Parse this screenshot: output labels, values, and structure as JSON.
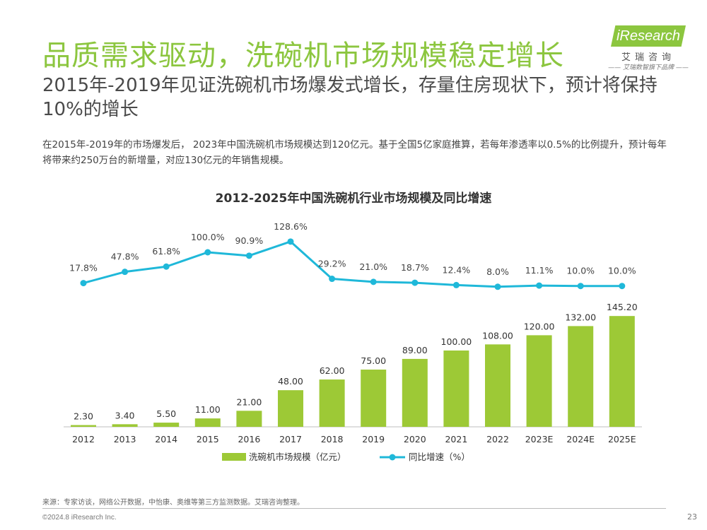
{
  "header": {
    "title": "品质需求驱动，洗碗机市场规模稳定增长",
    "subtitle": "2015年-2019年见证洗碗机市场爆发式增长，存量住房现状下，预计将保持10%的增长",
    "description": "在2015年-2019年的市场爆发后， 2023年中国洗碗机市场规模达到120亿元。基于全国5亿家庭推算，若每年渗透率以0.5%的比例提升，预计每年将带来约250万台的新增量，对应130亿元的年销售规模。"
  },
  "logo": {
    "brand": "iResearch",
    "cn": "艾瑞咨询",
    "tagline": "—— 艾瑞数智旗下品牌 ——"
  },
  "chart_data": {
    "type": "bar",
    "title": "2012-2025年中国洗碗机行业市场规模及同比增速",
    "categories": [
      "2012",
      "2013",
      "2014",
      "2015",
      "2016",
      "2017",
      "2018",
      "2019",
      "2020",
      "2021",
      "2022",
      "2023E",
      "2024E",
      "2025E"
    ],
    "series": [
      {
        "name": "洗碗机市场规模（亿元）",
        "type": "bar",
        "color": "#9dc936",
        "values": [
          2.3,
          3.4,
          5.5,
          11.0,
          21.0,
          48.0,
          62.0,
          75.0,
          89.0,
          100.0,
          108.0,
          120.0,
          132.0,
          145.2
        ],
        "labels": [
          "2.30",
          "3.40",
          "5.50",
          "11.00",
          "21.00",
          "48.00",
          "62.00",
          "75.00",
          "89.00",
          "100.00",
          "108.00",
          "120.00",
          "132.00",
          "145.20"
        ]
      },
      {
        "name": "同比增速（%）",
        "type": "line",
        "color": "#1fb8d9",
        "values": [
          17.8,
          47.8,
          61.8,
          100.0,
          90.9,
          128.6,
          29.2,
          21.0,
          18.7,
          12.4,
          8.0,
          11.1,
          10.0,
          10.0
        ],
        "labels": [
          "17.8%",
          "47.8%",
          "61.8%",
          "100.0%",
          "90.9%",
          "128.6%",
          "29.2%",
          "21.0%",
          "18.7%",
          "12.4%",
          "8.0%",
          "11.1%",
          "10.0%",
          "10.0%"
        ]
      }
    ],
    "xlabel": "",
    "ylabel": "",
    "bar_ylim": [
      0,
      160
    ],
    "line_ylim": [
      0,
      140
    ],
    "grid": false,
    "legend": "bottom-center"
  },
  "footer": {
    "source": "来源：专家访谈，网络公开数据，中怡康、奥维等第三方监测数据。艾瑞咨询整理。",
    "copyright": "©2024.8 iResearch Inc.",
    "page": "23"
  }
}
